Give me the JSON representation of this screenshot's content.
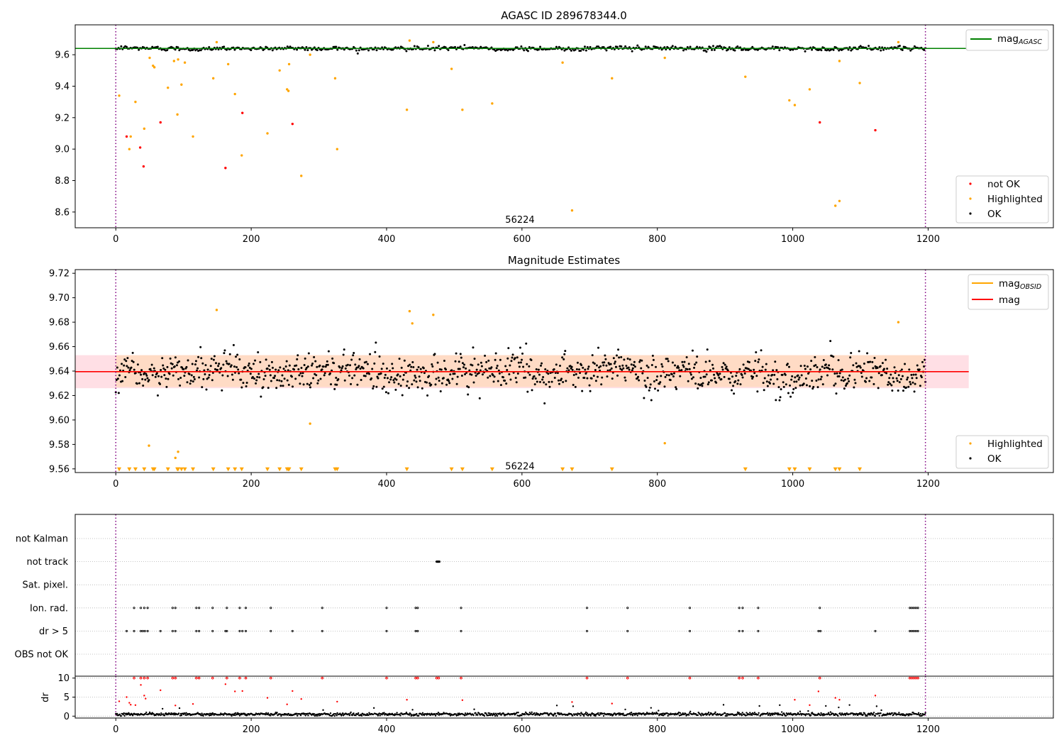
{
  "colors": {
    "ok": "#000000",
    "highlighted": "#ffa500",
    "not_ok": "#ff0000",
    "mag_agasc": "#008000",
    "mag": "#ff0000",
    "mag_obsid": "#ffa500",
    "band_outer": "#ffc0cb",
    "band_inner": "#ffdab9",
    "vline": "#800080",
    "grid": "#b0b0b0"
  },
  "chart_data": [
    {
      "type": "scatter",
      "title": "AGASC ID 289678344.0",
      "xlim": [
        -60,
        1385
      ],
      "ylim": [
        8.5,
        9.79
      ],
      "xticks": [
        0,
        200,
        400,
        600,
        800,
        1000,
        1200
      ],
      "yticks": [
        8.6,
        8.8,
        9.0,
        9.2,
        9.4,
        9.6
      ],
      "hline": {
        "value": 9.64,
        "x_range": [
          -60,
          1260
        ],
        "label": "mag",
        "label_sub": "AGASC"
      },
      "vlines": [
        0,
        1196
      ],
      "annotation": {
        "text": "56224",
        "x": 597,
        "y": 8.55
      },
      "legends": [
        {
          "placement": "top-right",
          "entries": [
            {
              "label": "mag",
              "sub": "AGASC",
              "kind": "line",
              "color": "mag_agasc"
            }
          ]
        },
        {
          "placement": "bottom-right",
          "entries": [
            {
              "label": "not OK",
              "kind": "dot",
              "color": "not_ok"
            },
            {
              "label": "Highlighted",
              "kind": "dot",
              "color": "highlighted"
            },
            {
              "label": "OK",
              "kind": "dot",
              "color": "ok"
            }
          ]
        }
      ],
      "ok_trend": {
        "x_range": [
          0,
          1196
        ],
        "center": 9.64,
        "spread": 0.012,
        "count": 600
      },
      "series": [
        {
          "name": "not OK",
          "color": "not_ok",
          "points": [
            [
              16,
              9.08
            ],
            [
              36,
              9.01
            ],
            [
              41,
              8.89
            ],
            [
              66,
              9.17
            ],
            [
              162,
              8.88
            ],
            [
              187,
              9.23
            ],
            [
              261,
              9.16
            ],
            [
              1040,
              9.17
            ],
            [
              1122,
              9.12
            ]
          ]
        },
        {
          "name": "Highlighted",
          "color": "highlighted",
          "points": [
            [
              5,
              9.34
            ],
            [
              20,
              9.0
            ],
            [
              22,
              9.08
            ],
            [
              29,
              9.3
            ],
            [
              42,
              9.13
            ],
            [
              50,
              9.58
            ],
            [
              55,
              9.53
            ],
            [
              57,
              9.52
            ],
            [
              77,
              9.39
            ],
            [
              86,
              9.56
            ],
            [
              91,
              9.22
            ],
            [
              92,
              9.57
            ],
            [
              97,
              9.41
            ],
            [
              102,
              9.55
            ],
            [
              114,
              9.08
            ],
            [
              144,
              9.45
            ],
            [
              149,
              9.68
            ],
            [
              166,
              9.54
            ],
            [
              176,
              9.35
            ],
            [
              186,
              8.96
            ],
            [
              224,
              9.1
            ],
            [
              242,
              9.5
            ],
            [
              253,
              9.38
            ],
            [
              255,
              9.37
            ],
            [
              256,
              9.54
            ],
            [
              274,
              8.83
            ],
            [
              287,
              9.6
            ],
            [
              324,
              9.45
            ],
            [
              327,
              9.0
            ],
            [
              430,
              9.25
            ],
            [
              434,
              9.69
            ],
            [
              469,
              9.68
            ],
            [
              496,
              9.51
            ],
            [
              512,
              9.25
            ],
            [
              556,
              9.29
            ],
            [
              660,
              9.55
            ],
            [
              674,
              8.61
            ],
            [
              733,
              9.45
            ],
            [
              811,
              9.58
            ],
            [
              930,
              9.46
            ],
            [
              995,
              9.31
            ],
            [
              1003,
              9.28
            ],
            [
              1025,
              9.38
            ],
            [
              1063,
              8.64
            ],
            [
              1069,
              8.67
            ],
            [
              1069,
              9.56
            ],
            [
              1099,
              9.42
            ],
            [
              1156,
              9.68
            ]
          ]
        }
      ]
    },
    {
      "type": "scatter",
      "title": "Magnitude Estimates",
      "xlim": [
        -60,
        1385
      ],
      "ylim": [
        9.557,
        9.723
      ],
      "xticks": [
        0,
        200,
        400,
        600,
        800,
        1000,
        1200
      ],
      "yticks": [
        9.56,
        9.58,
        9.6,
        9.62,
        9.64,
        9.66,
        9.68,
        9.7,
        9.72
      ],
      "hline": {
        "value": 9.6395,
        "x_range": [
          -60,
          1260
        ],
        "label": "mag"
      },
      "obsid_line": {
        "x_range": [
          0,
          1196
        ],
        "value": 9.6395,
        "label": "mag",
        "label_sub": "OBSID"
      },
      "band_outer": [
        9.626,
        9.653
      ],
      "band_inner": {
        "x_range": [
          0,
          1196
        ],
        "range": [
          9.627,
          9.653
        ]
      },
      "vlines": [
        0,
        1196
      ],
      "annotation": {
        "text": "56224",
        "x": 597,
        "y": 9.562
      },
      "legends": [
        {
          "placement": "top-right",
          "entries": [
            {
              "label": "mag",
              "sub": "OBSID",
              "kind": "line",
              "color": "mag_obsid"
            },
            {
              "label": "mag",
              "kind": "line",
              "color": "mag"
            }
          ]
        },
        {
          "placement": "bottom-right",
          "entries": [
            {
              "label": "Highlighted",
              "kind": "dot",
              "color": "highlighted"
            },
            {
              "label": "OK",
              "kind": "dot",
              "color": "ok"
            }
          ]
        }
      ],
      "ok_trend": {
        "x_range": [
          0,
          1196
        ],
        "center": 9.6395,
        "spread": 0.013,
        "count": 1100
      },
      "series": [
        {
          "name": "Highlighted",
          "color": "highlighted",
          "points": [
            [
              149,
              9.69
            ],
            [
              287,
              9.597
            ],
            [
              434,
              9.689
            ],
            [
              438,
              9.679
            ],
            [
              469,
              9.686
            ],
            [
              49,
              9.579
            ],
            [
              88,
              9.569
            ],
            [
              92,
              9.574
            ],
            [
              811,
              9.581
            ],
            [
              1156,
              9.68
            ]
          ]
        },
        {
          "name": "Highlighted below axis",
          "color": "highlighted",
          "marker": "triangle-down",
          "y": 9.5595,
          "x": [
            5,
            20,
            29,
            42,
            55,
            57,
            77,
            91,
            92,
            97,
            102,
            114,
            144,
            166,
            176,
            186,
            224,
            242,
            253,
            255,
            256,
            274,
            324,
            327,
            430,
            496,
            512,
            556,
            660,
            674,
            733,
            930,
            995,
            1003,
            1025,
            1063,
            1069,
            1099
          ]
        }
      ]
    },
    {
      "type": "scatter",
      "title": "",
      "xlim": [
        -60,
        1385
      ],
      "rows": [
        "not Kalman",
        "not track",
        "Sat. pixel.",
        "Ion. rad.",
        "dr > 5",
        "OBS not OK"
      ],
      "vlines": [
        0,
        1196
      ],
      "flags": {
        "not track": [
          474,
          475,
          476,
          477,
          478
        ],
        "Ion. rad.": [
          27,
          37,
          42,
          47,
          84,
          88,
          119,
          123,
          143,
          164,
          183,
          192,
          229,
          305,
          400,
          443,
          446,
          510,
          696,
          756,
          848,
          921,
          926,
          949,
          1040,
          1173,
          1176,
          1179,
          1182,
          1185
        ],
        "dr > 5": [
          16,
          27,
          37,
          40,
          43,
          47,
          66,
          84,
          88,
          119,
          123,
          143,
          162,
          164,
          183,
          187,
          192,
          229,
          261,
          305,
          400,
          443,
          446,
          510,
          696,
          756,
          848,
          921,
          926,
          949,
          1038,
          1041,
          1122,
          1173,
          1176,
          1179,
          1182,
          1185
        ]
      }
    },
    {
      "type": "scatter",
      "title": "",
      "ylabel": "dr",
      "xlim": [
        -60,
        1385
      ],
      "ylim": [
        -0.5,
        10.5
      ],
      "xticks": [
        0,
        200,
        400,
        600,
        800,
        1000,
        1200
      ],
      "yticks": [
        0,
        5,
        10
      ],
      "vlines": [
        0,
        1196
      ],
      "ok_trend": {
        "x_range": [
          0,
          1196
        ],
        "center": 0.5,
        "spread": 0.2,
        "count": 1196
      },
      "red_points": [
        [
          5,
          3.9
        ],
        [
          16,
          5.0
        ],
        [
          20,
          3.5
        ],
        [
          22,
          3.0
        ],
        [
          29,
          2.9
        ],
        [
          37,
          8.2
        ],
        [
          42,
          5.4
        ],
        [
          44,
          4.6
        ],
        [
          66,
          6.8
        ],
        [
          88,
          2.8
        ],
        [
          114,
          3.2
        ],
        [
          162,
          8.4
        ],
        [
          176,
          6.5
        ],
        [
          187,
          6.6
        ],
        [
          224,
          4.8
        ],
        [
          253,
          3.1
        ],
        [
          261,
          6.6
        ],
        [
          274,
          4.5
        ],
        [
          327,
          3.8
        ],
        [
          430,
          4.3
        ],
        [
          512,
          4.2
        ],
        [
          674,
          3.7
        ],
        [
          733,
          3.3
        ],
        [
          1003,
          4.3
        ],
        [
          1025,
          2.9
        ],
        [
          1038,
          6.5
        ],
        [
          1063,
          4.8
        ],
        [
          1069,
          4.3
        ],
        [
          1122,
          5.4
        ]
      ],
      "red_at_ten": [
        27,
        37,
        42,
        47,
        84,
        88,
        119,
        123,
        143,
        164,
        183,
        192,
        229,
        305,
        400,
        443,
        446,
        474,
        477,
        510,
        696,
        756,
        848,
        921,
        926,
        949,
        1040,
        1173,
        1176,
        1179,
        1182,
        1185
      ]
    }
  ]
}
